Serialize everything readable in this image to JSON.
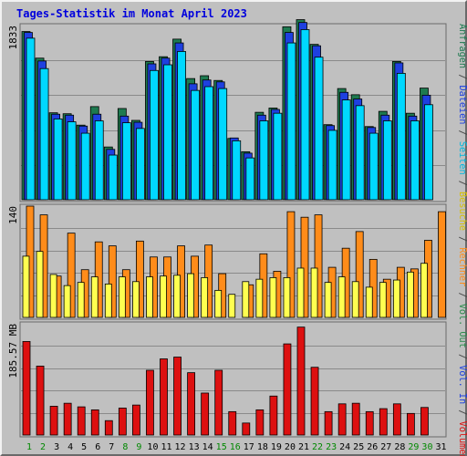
{
  "title": "Tages-Statistik im Monat April 2023",
  "colors": {
    "background": "#c0c0c0",
    "panel_border": "#6a6a6a",
    "title": "#0000dd",
    "anfragen": "#1e7a50",
    "dateien": "#1e40e0",
    "seiten": "#00d8ff",
    "besuche": "#ffff50",
    "rechner": "#ff8c1a",
    "volumen": "#dd1010",
    "weekend_label": "#008800",
    "weekday_label": "#000000"
  },
  "right_legend": {
    "top": [
      {
        "text": "Anfragen",
        "color": "#1e7a50"
      },
      {
        "text": " / ",
        "color": "#444444"
      },
      {
        "text": "Dateien",
        "color": "#1e40e0"
      },
      {
        "text": " / ",
        "color": "#444444"
      },
      {
        "text": "Seiten",
        "color": "#00b8e0"
      },
      {
        "text": " / ",
        "color": "#444444"
      },
      {
        "text": "Besuche",
        "color": "#d8c000"
      },
      {
        "text": " / ",
        "color": "#444444"
      },
      {
        "text": "Rechner",
        "color": "#ff8c1a"
      },
      {
        "text": " / ",
        "color": "#444444"
      },
      {
        "text": "Vol. Out",
        "color": "#2a8a4a"
      },
      {
        "text": " / ",
        "color": "#444444"
      },
      {
        "text": "Vol. In",
        "color": "#1e40e0"
      },
      {
        "text": " / ",
        "color": "#444444"
      },
      {
        "text": "Volumen",
        "color": "#dd1010"
      }
    ]
  },
  "chart_data": [
    {
      "type": "bar",
      "panel": "hits",
      "ylabel": "1833",
      "ymax": 1833,
      "categories": [
        "1",
        "2",
        "3",
        "4",
        "5",
        "6",
        "7",
        "8",
        "9",
        "10",
        "11",
        "12",
        "13",
        "14",
        "15",
        "16",
        "17",
        "18",
        "19",
        "20",
        "21",
        "22",
        "23",
        "24",
        "25",
        "26",
        "27",
        "28",
        "29",
        "30",
        "31"
      ],
      "weekend_days": [
        "1",
        "2",
        "8",
        "9",
        "15",
        "16",
        "22",
        "23",
        "29",
        "30"
      ],
      "series": [
        {
          "name": "Anfragen",
          "values": [
            1770,
            1490,
            915,
            905,
            785,
            980,
            555,
            960,
            835,
            1455,
            1505,
            1690,
            1275,
            1305,
            1255,
            645,
            505,
            920,
            965,
            1820,
            1895,
            1635,
            790,
            1170,
            1105,
            770,
            930,
            1455,
            910,
            1175,
            0
          ]
        },
        {
          "name": "Dateien",
          "values": [
            1760,
            1460,
            900,
            890,
            775,
            900,
            530,
            880,
            815,
            1430,
            1490,
            1650,
            1220,
            1260,
            1240,
            650,
            490,
            890,
            950,
            1760,
            1865,
            1620,
            780,
            1130,
            1060,
            760,
            890,
            1440,
            880,
            1100,
            0
          ]
        },
        {
          "name": "Seiten",
          "values": [
            1700,
            1380,
            850,
            820,
            700,
            830,
            470,
            810,
            750,
            1360,
            1420,
            1560,
            1150,
            1190,
            1170,
            620,
            440,
            830,
            910,
            1650,
            1790,
            1500,
            730,
            1050,
            990,
            700,
            830,
            1330,
            830,
            1000,
            0
          ]
        }
      ]
    },
    {
      "type": "bar",
      "panel": "visits",
      "ylabel": "140",
      "ymax": 140,
      "categories": [
        "1",
        "2",
        "3",
        "4",
        "5",
        "6",
        "7",
        "8",
        "9",
        "10",
        "11",
        "12",
        "13",
        "14",
        "15",
        "16",
        "17",
        "18",
        "19",
        "20",
        "21",
        "22",
        "23",
        "24",
        "25",
        "26",
        "27",
        "28",
        "29",
        "30",
        "31"
      ],
      "series": [
        {
          "name": "Besuche",
          "values": [
            77,
            83,
            54,
            40,
            44,
            51,
            42,
            51,
            45,
            51,
            52,
            53,
            55,
            50,
            34,
            29,
            45,
            48,
            50,
            50,
            62,
            62,
            44,
            51,
            45,
            38,
            44,
            47,
            57,
            68,
            0
          ]
        },
        {
          "name": "Rechner",
          "values": [
            140,
            129,
            52,
            106,
            60,
            95,
            90,
            60,
            96,
            76,
            76,
            90,
            77,
            91,
            55,
            0,
            41,
            80,
            58,
            133,
            126,
            129,
            63,
            87,
            108,
            73,
            48,
            63,
            61,
            97,
            133
          ]
        }
      ]
    },
    {
      "type": "bar",
      "panel": "volume",
      "ylabel": "185.57 MB",
      "ymax": 185.57,
      "categories": [
        "1",
        "2",
        "3",
        "4",
        "5",
        "6",
        "7",
        "8",
        "9",
        "10",
        "11",
        "12",
        "13",
        "14",
        "15",
        "16",
        "17",
        "18",
        "19",
        "20",
        "21",
        "22",
        "23",
        "24",
        "25",
        "26",
        "27",
        "28",
        "29",
        "30",
        "31"
      ],
      "series": [
        {
          "name": "Volumen",
          "values": [
            156,
            115,
            48,
            53,
            47,
            42,
            24,
            45,
            50,
            108,
            127,
            130,
            104,
            70,
            108,
            39,
            20,
            42,
            65,
            152,
            180,
            113,
            39,
            52,
            53,
            39,
            44,
            52,
            36,
            46,
            0
          ]
        }
      ]
    }
  ]
}
